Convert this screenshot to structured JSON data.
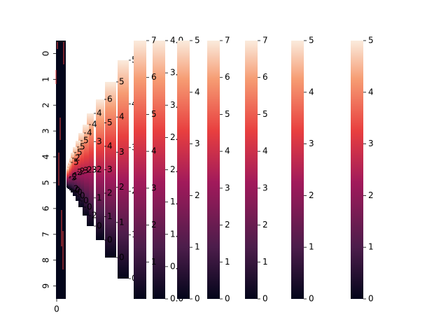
{
  "chart_data": {
    "type": "heatmap",
    "colormap": "rocket",
    "colormap_stops": [
      "#03051a",
      "#4c1d4b",
      "#a11a5b",
      "#e83f3f",
      "#f69c73",
      "#faebdd"
    ],
    "grid": false,
    "legend": "none",
    "heatmap": {
      "rows": 10,
      "columns": 1,
      "y_tick_labels": [
        "0",
        "1",
        "2",
        "3",
        "4",
        "5",
        "6",
        "7",
        "8",
        "9"
      ],
      "x_tick_labels": [
        "0"
      ]
    },
    "colorbars": [
      {
        "ticks": [
          "0.0",
          "0.5",
          "1.0",
          "1.5",
          "2.0",
          "2.5",
          "3.0",
          "3.5",
          "4.0"
        ],
        "vmin": 0,
        "vmax": 4
      },
      {
        "ticks": [
          "1",
          "2",
          "3",
          "4",
          "5",
          "6",
          "7"
        ],
        "vmin": 0,
        "vmax": 7
      },
      {
        "ticks": [
          "0",
          "1",
          "2",
          "3",
          "4",
          "5"
        ],
        "vmin": 0,
        "vmax": 5
      },
      {
        "ticks": [
          "0",
          "1",
          "2",
          "3",
          "4",
          "5",
          "6",
          "7"
        ],
        "vmin": 0,
        "vmax": 7
      },
      {
        "ticks": [
          "0",
          "1",
          "2",
          "3",
          "4",
          "5",
          "6",
          "7"
        ],
        "vmin": 0,
        "vmax": 7
      },
      {
        "ticks": [
          "0",
          "1",
          "2",
          "3",
          "4",
          "5"
        ],
        "vmin": 0,
        "vmax": 5
      },
      {
        "ticks": [
          "0",
          "1",
          "2",
          "3",
          "4",
          "5"
        ],
        "vmin": 0,
        "vmax": 5
      }
    ],
    "compressed_colorbars": [
      {
        "ticks": [
          "0",
          "1",
          "2",
          "3",
          "4",
          "5"
        ]
      },
      {
        "ticks": [
          "0",
          "1",
          "2",
          "3",
          "4",
          "5"
        ]
      },
      {
        "ticks": [
          "0",
          "1",
          "2",
          "3",
          "4",
          "5",
          "6"
        ]
      },
      {
        "ticks": [
          "0",
          "1",
          "2",
          "3",
          "4"
        ]
      },
      {
        "ticks": [
          "2",
          "3",
          "4"
        ]
      },
      {
        "ticks": [
          "0",
          "2",
          "4"
        ]
      },
      {
        "ticks": [
          "0",
          "3",
          "5"
        ]
      },
      {
        "ticks": [
          "0",
          "2",
          "5"
        ]
      },
      {
        "ticks": [
          "0",
          "2",
          "5"
        ]
      },
      {
        "ticks": [
          "0",
          "2"
        ]
      },
      {
        "ticks": [
          "2",
          "5"
        ]
      },
      {
        "ticks": [
          "2"
        ]
      },
      {
        "ticks": [
          "5"
        ]
      }
    ]
  }
}
